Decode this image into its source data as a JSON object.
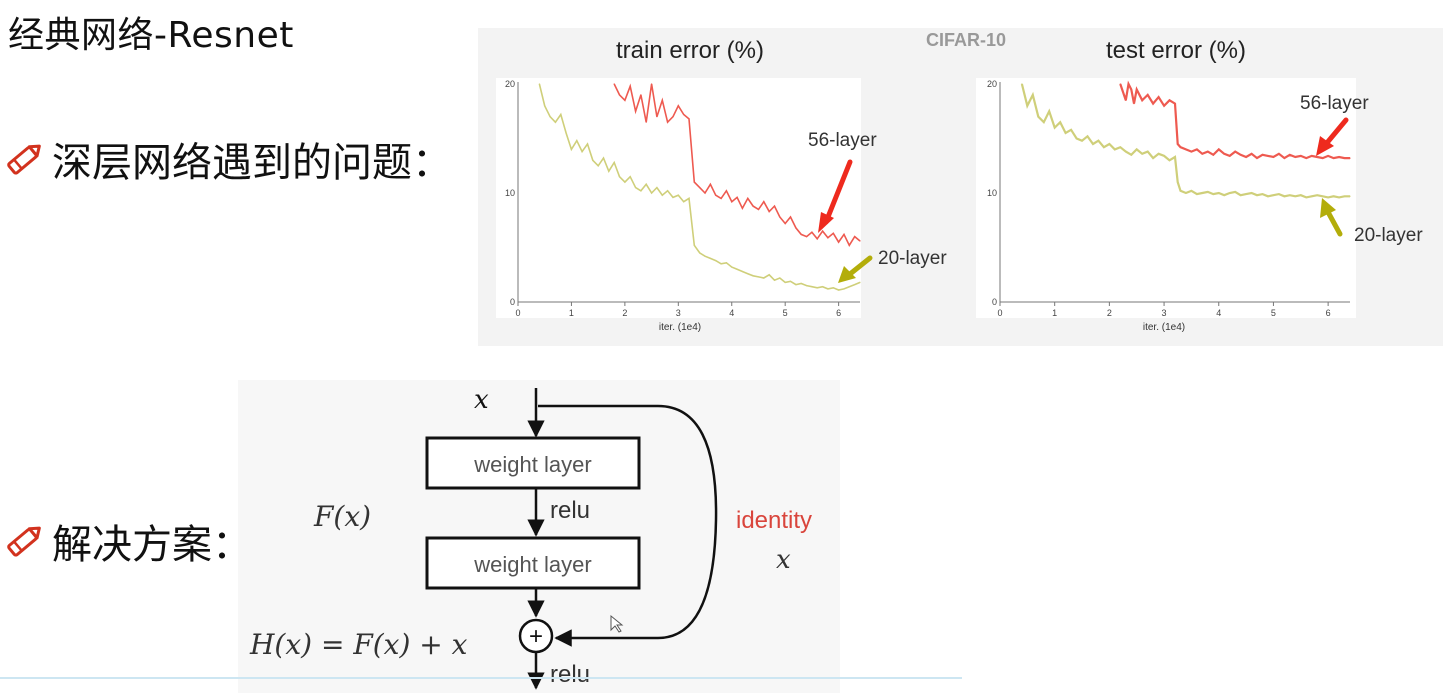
{
  "slide": {
    "title": "经典网络-Resnet",
    "bullets": [
      {
        "icon": "pencil-icon",
        "text": "深层网络遇到的问题："
      },
      {
        "icon": "pencil-icon",
        "text": "解决方案："
      }
    ]
  },
  "figure": {
    "dataset_label": "CIFAR-10",
    "colors": {
      "layer56": "#ee5a50",
      "layer20": "#cfcf7a",
      "arrow56": "#ee2a1e",
      "arrow20": "#b3ad0a",
      "identity": "#d9453c"
    }
  },
  "chart_data": [
    {
      "type": "line",
      "title": "train error (%)",
      "xlabel": "iter. (1e4)",
      "ylabel": "",
      "xlim": [
        0,
        6.4
      ],
      "ylim": [
        0,
        20
      ],
      "x_ticks": [
        "0",
        "1",
        "2",
        "3",
        "4",
        "5",
        "6"
      ],
      "y_ticks": [
        "0",
        "10",
        "20"
      ],
      "annotations": [
        "56-layer",
        "20-layer"
      ],
      "series": [
        {
          "name": "56-layer",
          "x": [
            1.8,
            1.9,
            2.0,
            2.1,
            2.2,
            2.3,
            2.4,
            2.5,
            2.6,
            2.7,
            2.8,
            2.9,
            3.0,
            3.1,
            3.2,
            3.3,
            3.4,
            3.5,
            3.6,
            3.7,
            3.8,
            3.9,
            4.0,
            4.1,
            4.2,
            4.3,
            4.4,
            4.5,
            4.6,
            4.7,
            4.8,
            4.9,
            5.0,
            5.1,
            5.2,
            5.3,
            5.4,
            5.5,
            5.6,
            5.7,
            5.8,
            5.9,
            6.0,
            6.1,
            6.2,
            6.3,
            6.4
          ],
          "y": [
            20,
            19,
            18.5,
            19.8,
            17.5,
            19,
            16.5,
            20,
            17,
            18.5,
            16.5,
            17,
            18,
            17.2,
            16.8,
            11,
            10.5,
            10,
            10.8,
            9.8,
            9.5,
            10.2,
            9.2,
            9.6,
            8.6,
            9.5,
            8.8,
            8.5,
            9.2,
            8.3,
            8.8,
            7.8,
            7.2,
            7.8,
            6.8,
            6.2,
            6,
            6.4,
            5.8,
            6.5,
            5.9,
            6.3,
            5.5,
            6.2,
            5.2,
            6,
            5.6
          ]
        },
        {
          "name": "20-layer",
          "x": [
            0.4,
            0.5,
            0.6,
            0.7,
            0.8,
            0.9,
            1.0,
            1.1,
            1.2,
            1.3,
            1.4,
            1.5,
            1.6,
            1.7,
            1.8,
            1.9,
            2.0,
            2.1,
            2.2,
            2.3,
            2.4,
            2.5,
            2.6,
            2.7,
            2.8,
            2.9,
            3.0,
            3.1,
            3.2,
            3.3,
            3.4,
            3.5,
            3.6,
            3.7,
            3.8,
            3.9,
            4.0,
            4.1,
            4.2,
            4.3,
            4.4,
            4.5,
            4.6,
            4.7,
            4.8,
            4.9,
            5.0,
            5.1,
            5.2,
            5.3,
            5.4,
            5.5,
            5.6,
            5.7,
            5.8,
            5.9,
            6.0,
            6.1,
            6.2,
            6.3,
            6.4
          ],
          "y": [
            20,
            18,
            17,
            16.5,
            17.2,
            15.5,
            14,
            14.8,
            13.8,
            14.5,
            13,
            12.5,
            13.2,
            12,
            12.8,
            11.5,
            11,
            11.5,
            10.5,
            10.2,
            10.8,
            10,
            10.5,
            9.8,
            10.2,
            9.6,
            9.8,
            9.2,
            9.5,
            5.2,
            4.5,
            4.2,
            4,
            3.8,
            3.5,
            3.6,
            3.2,
            3,
            2.8,
            2.6,
            2.4,
            2.3,
            2.2,
            2.5,
            2,
            2.2,
            1.8,
            1.9,
            1.6,
            1.7,
            1.5,
            1.4,
            1.3,
            1.4,
            1.2,
            1.3,
            1.1,
            1.2,
            1.4,
            1.6,
            1.8
          ]
        }
      ]
    },
    {
      "type": "line",
      "title": "test error (%)",
      "xlabel": "iter. (1e4)",
      "ylabel": "",
      "xlim": [
        0,
        6.4
      ],
      "ylim": [
        0,
        20
      ],
      "x_ticks": [
        "0",
        "1",
        "2",
        "3",
        "4",
        "5",
        "6"
      ],
      "y_ticks": [
        "0",
        "10",
        "20"
      ],
      "annotations": [
        "56-layer",
        "20-layer"
      ],
      "series": [
        {
          "name": "56-layer",
          "x": [
            2.2,
            2.3,
            2.35,
            2.4,
            2.45,
            2.5,
            2.6,
            2.7,
            2.8,
            2.9,
            3.0,
            3.1,
            3.2,
            3.25,
            3.3,
            3.4,
            3.5,
            3.6,
            3.7,
            3.8,
            3.9,
            4.0,
            4.1,
            4.2,
            4.3,
            4.4,
            4.5,
            4.6,
            4.7,
            4.8,
            4.9,
            5.0,
            5.1,
            5.2,
            5.3,
            5.4,
            5.5,
            5.6,
            5.7,
            5.8,
            5.9,
            6.0,
            6.1,
            6.2,
            6.3,
            6.4
          ],
          "y": [
            20,
            18.5,
            20,
            19.5,
            18.2,
            19.5,
            18.5,
            19,
            18.2,
            18.8,
            18,
            18.5,
            18.2,
            14.5,
            14.2,
            14,
            13.8,
            14,
            13.6,
            13.8,
            13.5,
            14,
            13.6,
            13.4,
            13.8,
            13.5,
            13.3,
            13.6,
            13.2,
            13.5,
            13.4,
            13.3,
            13.6,
            13.2,
            13.5,
            13.3,
            13.4,
            13.2,
            13.4,
            13.3,
            13.2,
            13.4,
            13.2,
            13.3,
            13.2,
            13.2
          ]
        },
        {
          "name": "20-layer",
          "x": [
            0.4,
            0.5,
            0.6,
            0.7,
            0.8,
            0.9,
            1.0,
            1.1,
            1.2,
            1.3,
            1.4,
            1.5,
            1.6,
            1.7,
            1.8,
            1.9,
            2.0,
            2.1,
            2.2,
            2.3,
            2.4,
            2.5,
            2.6,
            2.7,
            2.8,
            2.9,
            3.0,
            3.1,
            3.2,
            3.25,
            3.3,
            3.4,
            3.5,
            3.6,
            3.7,
            3.8,
            3.9,
            4.0,
            4.1,
            4.2,
            4.3,
            4.4,
            4.5,
            4.6,
            4.7,
            4.8,
            4.9,
            5.0,
            5.1,
            5.2,
            5.3,
            5.4,
            5.5,
            5.6,
            5.7,
            5.8,
            5.9,
            6.0,
            6.1,
            6.2,
            6.3,
            6.4
          ],
          "y": [
            20,
            18,
            19,
            17,
            16.5,
            17.5,
            16,
            16.5,
            15.5,
            15.8,
            15,
            14.8,
            15.2,
            14.5,
            14.8,
            14.2,
            14.5,
            14,
            14.2,
            13.8,
            13.5,
            14,
            13.6,
            13.8,
            13.2,
            13.6,
            13.4,
            13,
            13.3,
            11,
            10.2,
            10,
            10.2,
            9.9,
            10,
            10.1,
            9.9,
            10,
            9.8,
            10,
            10.1,
            9.8,
            9.9,
            10,
            9.8,
            9.9,
            9.7,
            9.8,
            9.9,
            9.7,
            9.8,
            9.7,
            9.8,
            9.6,
            9.7,
            9.8,
            9.7,
            9.6,
            9.7,
            9.6,
            9.7,
            9.7
          ]
        }
      ]
    }
  ],
  "diagram": {
    "input_label": "x",
    "fx_label": "F(x)",
    "weight_layer_1": "weight layer",
    "relu_1": "relu",
    "weight_layer_2": "weight layer",
    "identity_label": "identity",
    "identity_x": "x",
    "equation": "H(x) = F(x) + x",
    "plus_symbol": "+",
    "relu_2": "relu"
  }
}
